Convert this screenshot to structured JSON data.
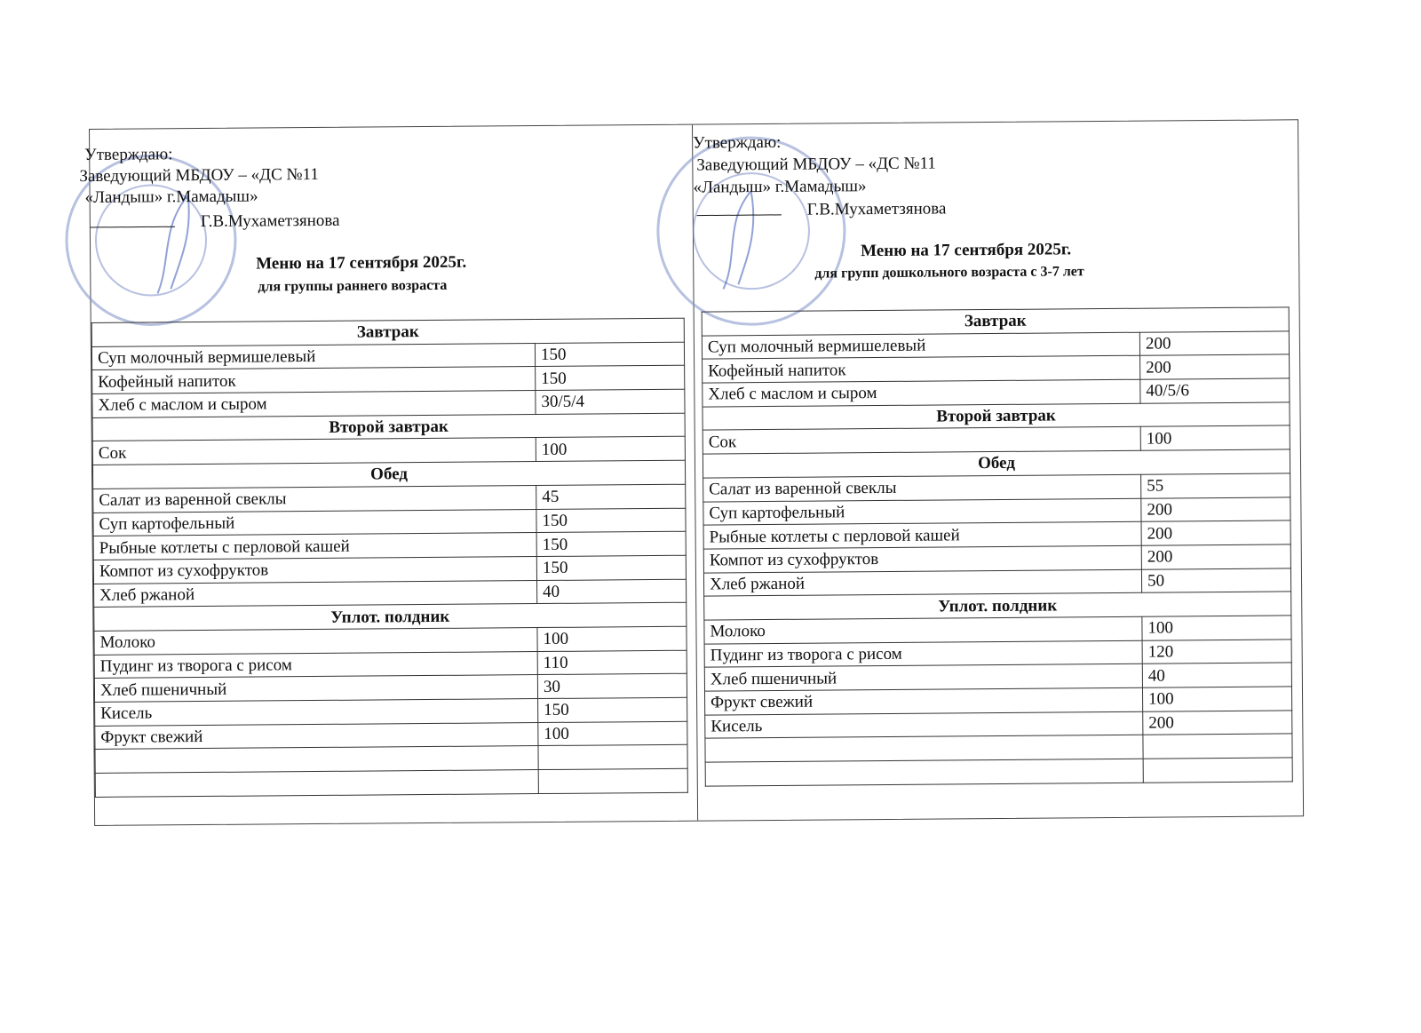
{
  "colors": {
    "stamp": "#7d8fc8",
    "ink": "#111111",
    "signature": "#3a55b5"
  },
  "panels": [
    {
      "approve": "Утверждаю:",
      "head": "Заведующий МБДОУ – «ДС №11",
      "org": "«Ландыш» г.Мамадыш»",
      "sign_line": "__________",
      "name": "Г.В.Мухаметзянова",
      "title": "Меню на 17 сентября 2025г.",
      "subtitle": "для группы раннего возраста",
      "rows": [
        {
          "section": "Завтрак"
        },
        {
          "dish": "Суп молочный вермишелевый",
          "qty": "150"
        },
        {
          "dish": "Кофейный напиток",
          "qty": "150"
        },
        {
          "dish": "Хлеб с маслом и сыром",
          "qty": "30/5/4"
        },
        {
          "section": "Второй завтрак"
        },
        {
          "dish": "Сок",
          "qty": "100"
        },
        {
          "section": "Обед"
        },
        {
          "dish": " Салат из варенной свеклы",
          "qty": " 45"
        },
        {
          "dish": "Суп картофельный",
          "qty": "150"
        },
        {
          "dish": "Рыбные котлеты с перловой кашей",
          "qty": "150"
        },
        {
          "dish": "Компот из сухофруктов",
          "qty": "150"
        },
        {
          "dish": "Хлеб ржаной",
          "qty": "40"
        },
        {
          "section": "Уплот. полдник"
        },
        {
          "dish": "Молоко",
          "qty": "100"
        },
        {
          "dish": "Пудинг из творога с рисом",
          "qty": "110"
        },
        {
          "dish": "Хлеб пшеничный",
          "qty": "30"
        },
        {
          "dish": "Кисель",
          "qty": "150"
        },
        {
          "dish": "Фрукт свежий",
          "qty": "100"
        },
        {
          "dish": "",
          "qty": ""
        },
        {
          "dish": "",
          "qty": ""
        }
      ]
    },
    {
      "approve": "Утверждаю:",
      "head": "Заведующий МБДОУ – «ДС №11",
      "org": "«Ландыш» г.Мамадыш»",
      "sign_line": "__________",
      "name": "Г.В.Мухаметзянова",
      "title": "Меню на 17 сентября 2025г.",
      "subtitle": "для групп дошкольного возраста с 3-7 лет",
      "rows": [
        {
          "section": "Завтрак"
        },
        {
          "dish": "Суп молочный вермишелевый",
          "qty": "200"
        },
        {
          "dish": "Кофейный напиток",
          "qty": "200"
        },
        {
          "dish": "Хлеб с маслом и сыром",
          "qty": "40/5/6"
        },
        {
          "section": "Второй завтрак"
        },
        {
          "dish": "Сок",
          "qty": "100"
        },
        {
          "section": "Обед"
        },
        {
          "dish": " Салат из варенной свеклы",
          "qty": " 55"
        },
        {
          "dish": "Суп картофельный",
          "qty": "200"
        },
        {
          "dish": "Рыбные котлеты с перловой кашей",
          "qty": "200"
        },
        {
          "dish": "Компот из сухофруктов",
          "qty": "200"
        },
        {
          "dish": "Хлеб ржаной",
          "qty": "50"
        },
        {
          "section": "Уплот. полдник"
        },
        {
          "dish": "Молоко",
          "qty": "100"
        },
        {
          "dish": "Пудинг из творога с рисом",
          "qty": "120"
        },
        {
          "dish": "Хлеб пшеничный",
          "qty": "40"
        },
        {
          "dish": "Фрукт свежий",
          "qty": "100"
        },
        {
          "dish": "Кисель",
          "qty": "200"
        },
        {
          "dish": "",
          "qty": ""
        },
        {
          "dish": "",
          "qty": ""
        }
      ]
    }
  ]
}
